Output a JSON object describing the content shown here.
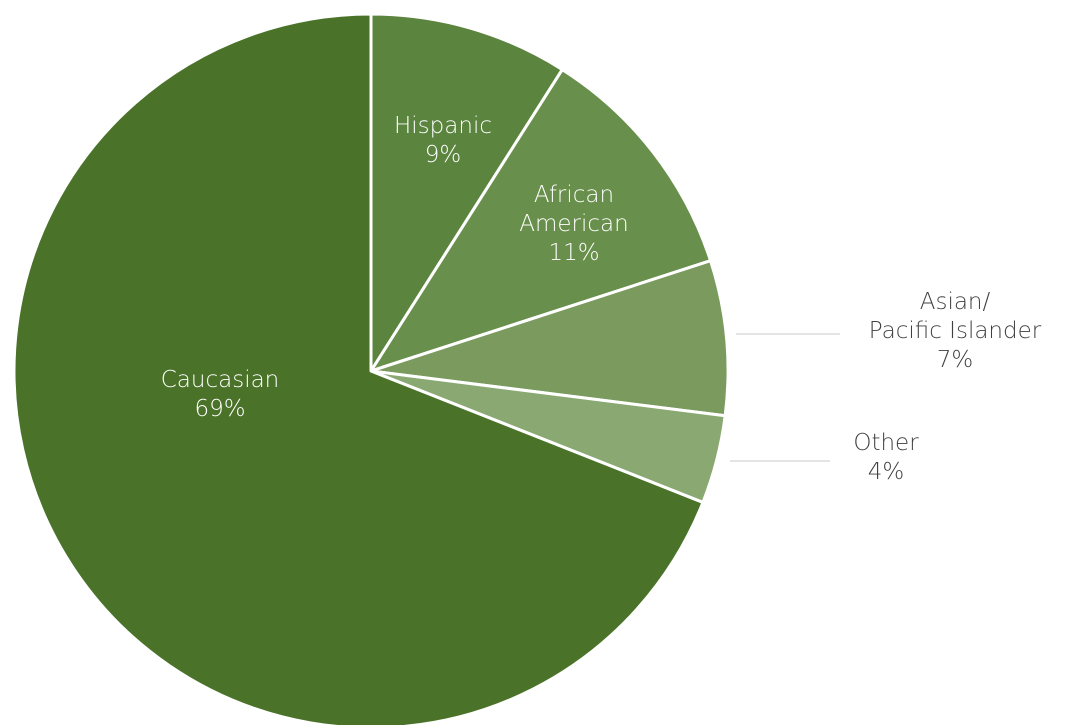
{
  "chart_data": {
    "type": "pie",
    "title": "",
    "slices": [
      {
        "label": [
          "Hispanic"
        ],
        "value": 9,
        "value_label": "9%",
        "color": "#5b843f"
      },
      {
        "label": [
          "African",
          "American"
        ],
        "value": 11,
        "value_label": "11%",
        "color": "#688f4b"
      },
      {
        "label": [
          "Asian/",
          "Pacific Islander"
        ],
        "value": 7,
        "value_label": "7%",
        "color": "#7a9a5e"
      },
      {
        "label": [
          "Other"
        ],
        "value": 4,
        "value_label": "4%",
        "color": "#8aa872"
      },
      {
        "label": [
          "Caucasian"
        ],
        "value": 69,
        "value_label": "69%",
        "color": "#4a7329"
      }
    ],
    "start": "12 o'clock",
    "direction": "clockwise",
    "legend": "none"
  }
}
